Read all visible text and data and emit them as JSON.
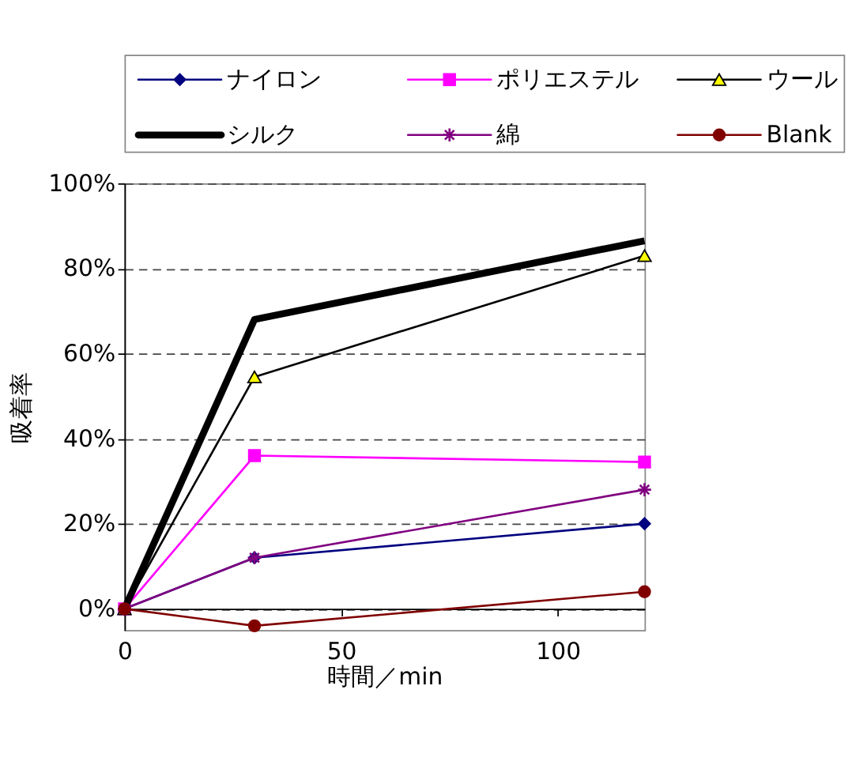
{
  "chart_data": {
    "type": "line",
    "xlabel": "時間／min",
    "ylabel": "吸着率",
    "x": [
      0,
      30,
      120
    ],
    "series": [
      {
        "name": "ナイロン",
        "color": "#000080",
        "marker": "diamond",
        "values": [
          0,
          12,
          20
        ]
      },
      {
        "name": "ポリエステル",
        "color": "#ff00ff",
        "marker": "square",
        "values": [
          0,
          36,
          34.5
        ]
      },
      {
        "name": "ウール",
        "color": "#000000",
        "marker": "triangle",
        "values": [
          0,
          54.5,
          83
        ]
      },
      {
        "name": "シルク",
        "color": "#000000",
        "marker": "none",
        "values": [
          0,
          68,
          86.5
        ]
      },
      {
        "name": "綿",
        "color": "#800080",
        "marker": "cross",
        "values": [
          0,
          12,
          28
        ]
      },
      {
        "name": "Blank",
        "color": "#800000",
        "marker": "circle",
        "values": [
          0,
          -4,
          4
        ]
      }
    ],
    "xlim": [
      0,
      120
    ],
    "xticks": [
      0,
      50,
      100
    ],
    "ylim": [
      -5,
      100
    ],
    "yticks": [
      {
        "value": 0,
        "label": "0%"
      },
      {
        "value": 20,
        "label": "20%"
      },
      {
        "value": 40,
        "label": "40%"
      },
      {
        "value": 60,
        "label": "60%"
      },
      {
        "value": 80,
        "label": "80%"
      },
      {
        "value": 100,
        "label": "100%"
      }
    ],
    "grid": "y",
    "legend": "top"
  }
}
